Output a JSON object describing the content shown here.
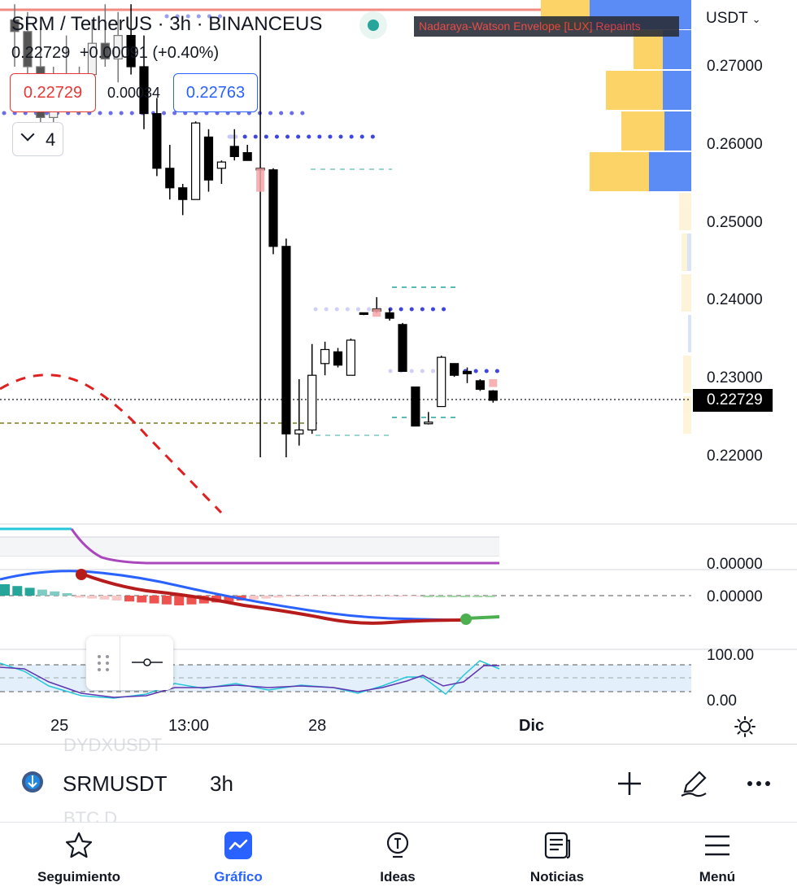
{
  "header": {
    "title": "SRM / TetherUS · 3h · BINANCEUS",
    "last_price": "0.22729",
    "change": "+0.00091 (+0.40%)",
    "indicator_label": "Nadaraya-Watson Envelope [LUX] Repaints"
  },
  "trade": {
    "sell_price": "0.22729",
    "spread": "0.00034",
    "buy_price": "0.22763"
  },
  "indicators_collapsed_count": "4",
  "price_axis": {
    "currency": "USDT",
    "ticks": [
      "0.27000",
      "0.26000",
      "0.25000",
      "0.24000",
      "0.23000",
      "0.22000"
    ],
    "current_price": "0.22729",
    "pane2_tick": "0.00000",
    "pane3_tick": "0.00000",
    "pane4_ticks": [
      "100.00",
      "0.00"
    ]
  },
  "time_axis": {
    "ticks": [
      "25",
      "13:00",
      "28",
      "Dic"
    ]
  },
  "symbol_bar": {
    "ghost_above": "DYDXUSDT",
    "symbol": "SRMUSDT",
    "interval": "3h",
    "ghost_below": "BTC.D"
  },
  "nav": {
    "items": [
      {
        "label": "Seguimiento",
        "icon": "star-icon"
      },
      {
        "label": "Gráfico",
        "icon": "chart-icon"
      },
      {
        "label": "Ideas",
        "icon": "lightbulb-icon"
      },
      {
        "label": "Noticias",
        "icon": "news-icon"
      },
      {
        "label": "Menú",
        "icon": "menu-icon"
      }
    ],
    "active": "Gráfico"
  },
  "colors": {
    "up": "#ffffff",
    "down": "#000000",
    "sell": "#e53935",
    "buy": "#2962ff",
    "accent": "#2962ff",
    "volume_profile_up": "#fcd367",
    "volume_profile_down": "#5b8cf5"
  },
  "chart_data": {
    "type": "candlestick",
    "y_range": [
      0.215,
      0.275
    ],
    "candles": [
      {
        "o": 0.276,
        "h": 0.278,
        "l": 0.27,
        "c": 0.2745
      },
      {
        "o": 0.2745,
        "h": 0.277,
        "l": 0.268,
        "c": 0.27
      },
      {
        "o": 0.27,
        "h": 0.275,
        "l": 0.262,
        "c": 0.2635
      },
      {
        "o": 0.2635,
        "h": 0.27,
        "l": 0.261,
        "c": 0.269
      },
      {
        "o": 0.269,
        "h": 0.274,
        "l": 0.265,
        "c": 0.2665
      },
      {
        "o": 0.2665,
        "h": 0.27,
        "l": 0.264,
        "c": 0.269
      },
      {
        "o": 0.269,
        "h": 0.276,
        "l": 0.267,
        "c": 0.273
      },
      {
        "o": 0.273,
        "h": 0.278,
        "l": 0.27,
        "c": 0.271
      },
      {
        "o": 0.271,
        "h": 0.277,
        "l": 0.268,
        "c": 0.274
      },
      {
        "o": 0.274,
        "h": 0.278,
        "l": 0.269,
        "c": 0.27
      },
      {
        "o": 0.27,
        "h": 0.274,
        "l": 0.262,
        "c": 0.264
      },
      {
        "o": 0.264,
        "h": 0.266,
        "l": 0.256,
        "c": 0.257
      },
      {
        "o": 0.257,
        "h": 0.26,
        "l": 0.253,
        "c": 0.2545
      },
      {
        "o": 0.2545,
        "h": 0.255,
        "l": 0.251,
        "c": 0.253
      },
      {
        "o": 0.253,
        "h": 0.263,
        "l": 0.253,
        "c": 0.2628
      },
      {
        "o": 0.261,
        "h": 0.262,
        "l": 0.254,
        "c": 0.2555
      },
      {
        "o": 0.257,
        "h": 0.258,
        "l": 0.255,
        "c": 0.2578
      },
      {
        "o": 0.2598,
        "h": 0.262,
        "l": 0.258,
        "c": 0.2585
      },
      {
        "o": 0.259,
        "h": 0.26,
        "l": 0.258,
        "c": 0.258
      },
      {
        "o": 0.257,
        "h": 0.274,
        "l": 0.22,
        "c": 0.2568
      },
      {
        "o": 0.2568,
        "h": 0.257,
        "l": 0.246,
        "c": 0.247
      },
      {
        "o": 0.247,
        "h": 0.248,
        "l": 0.22,
        "c": 0.223
      },
      {
        "o": 0.223,
        "h": 0.23,
        "l": 0.2215,
        "c": 0.2235
      },
      {
        "o": 0.2235,
        "h": 0.2345,
        "l": 0.223,
        "c": 0.2305
      },
      {
        "o": 0.232,
        "h": 0.2348,
        "l": 0.2305,
        "c": 0.2338
      },
      {
        "o": 0.2335,
        "h": 0.234,
        "l": 0.2315,
        "c": 0.2318
      },
      {
        "o": 0.2305,
        "h": 0.2352,
        "l": 0.2305,
        "c": 0.235
      },
      {
        "o": 0.2385,
        "h": 0.2385,
        "l": 0.2382,
        "c": 0.2383
      },
      {
        "o": 0.239,
        "h": 0.2405,
        "l": 0.2385,
        "c": 0.2387
      },
      {
        "o": 0.2385,
        "h": 0.239,
        "l": 0.2375,
        "c": 0.2378
      },
      {
        "o": 0.237,
        "h": 0.2372,
        "l": 0.231,
        "c": 0.231
      },
      {
        "o": 0.229,
        "h": 0.229,
        "l": 0.224,
        "c": 0.224
      },
      {
        "o": 0.2243,
        "h": 0.2258,
        "l": 0.2242,
        "c": 0.2245
      },
      {
        "o": 0.2265,
        "h": 0.233,
        "l": 0.2265,
        "c": 0.2328
      },
      {
        "o": 0.232,
        "h": 0.232,
        "l": 0.2303,
        "c": 0.2305
      },
      {
        "o": 0.231,
        "h": 0.2315,
        "l": 0.2295,
        "c": 0.2307
      },
      {
        "o": 0.2298,
        "h": 0.23,
        "l": 0.2285,
        "c": 0.2287
      },
      {
        "o": 0.2285,
        "h": 0.2286,
        "l": 0.227,
        "c": 0.2273
      }
    ],
    "x_ticks": [
      "25",
      "13:00",
      "28",
      "Dic"
    ]
  }
}
